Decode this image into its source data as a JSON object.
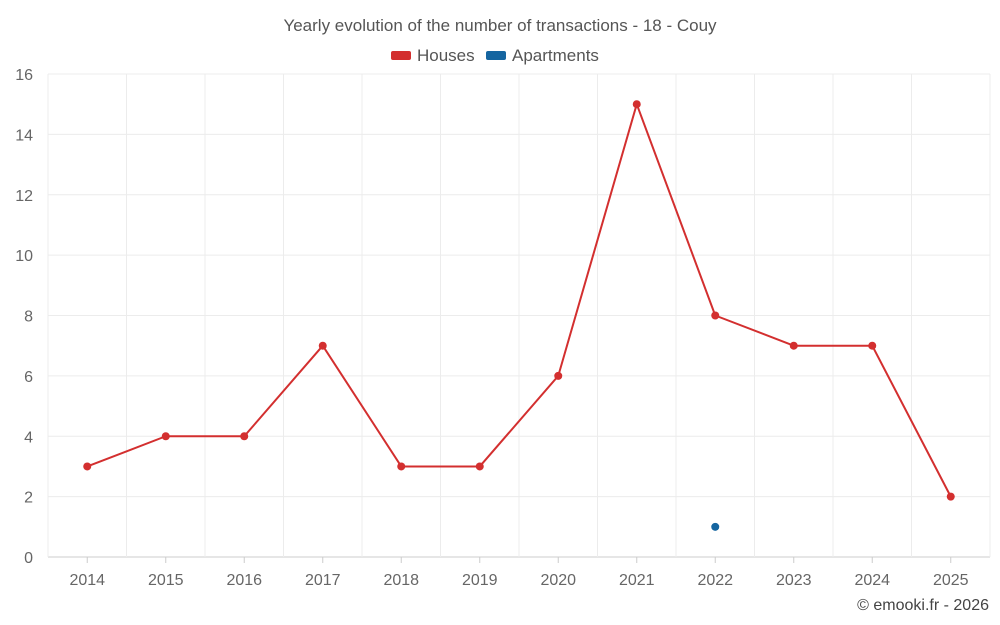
{
  "chart_data": {
    "type": "line",
    "title": "Yearly evolution of the number of transactions - 18 - Couy",
    "categories": [
      "2014",
      "2015",
      "2016",
      "2017",
      "2018",
      "2019",
      "2020",
      "2021",
      "2022",
      "2023",
      "2024",
      "2025"
    ],
    "series": [
      {
        "name": "Houses",
        "color": "#d32f2f",
        "values": [
          3,
          4,
          4,
          7,
          3,
          3,
          6,
          15,
          8,
          7,
          7,
          2
        ]
      },
      {
        "name": "Apartments",
        "color": "#1565a0",
        "values": [
          null,
          null,
          null,
          null,
          null,
          null,
          null,
          null,
          1,
          null,
          null,
          null
        ]
      }
    ],
    "ylim": [
      0,
      16
    ],
    "yticks": [
      0,
      2,
      4,
      6,
      8,
      10,
      12,
      14,
      16
    ],
    "grid": true,
    "legend": "top-center",
    "xlabel": "",
    "ylabel": ""
  },
  "credit": "© emooki.fr - 2026"
}
